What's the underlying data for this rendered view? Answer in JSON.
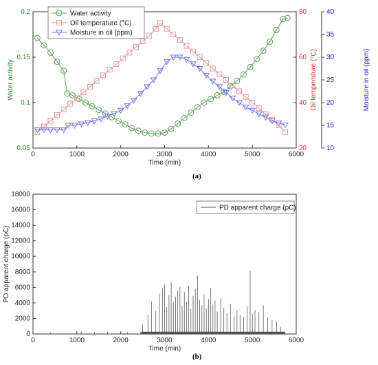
{
  "captions": {
    "a": "(a)",
    "b": "(b)"
  },
  "chart_data": [
    {
      "type": "line",
      "xlabel": "Time (min)",
      "x_ticks": [
        "0",
        "1000",
        "2000",
        "3000",
        "4000",
        "5000",
        "6000"
      ],
      "xlim": [
        0,
        6000
      ],
      "axes": {
        "left": {
          "label": "Water activity",
          "color": "#2e8b2e",
          "ylim": [
            0.05,
            0.2
          ],
          "ticks": [
            "0.05",
            "0.1",
            "0.15",
            "0.2"
          ]
        },
        "right1": {
          "label": "Oil temperature (°C)",
          "color": "#cc3333",
          "ylim": [
            20,
            80
          ],
          "ticks": [
            "20",
            "40",
            "60",
            "80"
          ]
        },
        "right2": {
          "label": "Moisture in oil (ppm)",
          "color": "#2222cc",
          "ylim": [
            10,
            40
          ],
          "ticks": [
            "10",
            "15",
            "20",
            "25",
            "30",
            "35",
            "40"
          ]
        }
      },
      "legend_position": "top-left",
      "series": [
        {
          "name": "Water activity",
          "axis": "left",
          "color": "#5aa55a",
          "marker": "circle",
          "points": [
            [
              100,
              0.171
            ],
            [
              250,
              0.163
            ],
            [
              400,
              0.155
            ],
            [
              550,
              0.145
            ],
            [
              700,
              0.135
            ],
            [
              780,
              0.11
            ],
            [
              900,
              0.108
            ],
            [
              1050,
              0.104
            ],
            [
              1200,
              0.1
            ],
            [
              1350,
              0.096
            ],
            [
              1500,
              0.092
            ],
            [
              1650,
              0.088
            ],
            [
              1800,
              0.084
            ],
            [
              1950,
              0.08
            ],
            [
              2100,
              0.076
            ],
            [
              2250,
              0.072
            ],
            [
              2400,
              0.069
            ],
            [
              2550,
              0.067
            ],
            [
              2700,
              0.066
            ],
            [
              2850,
              0.066
            ],
            [
              3000,
              0.067
            ],
            [
              3150,
              0.071
            ],
            [
              3300,
              0.077
            ],
            [
              3450,
              0.083
            ],
            [
              3600,
              0.089
            ],
            [
              3750,
              0.095
            ],
            [
              3900,
              0.1
            ],
            [
              4050,
              0.104
            ],
            [
              4200,
              0.108
            ],
            [
              4350,
              0.112
            ],
            [
              4500,
              0.118
            ],
            [
              4650,
              0.124
            ],
            [
              4800,
              0.131
            ],
            [
              4950,
              0.139
            ],
            [
              5100,
              0.148
            ],
            [
              5250,
              0.157
            ],
            [
              5400,
              0.167
            ],
            [
              5550,
              0.18
            ],
            [
              5700,
              0.192
            ],
            [
              5800,
              0.193
            ]
          ]
        },
        {
          "name": "Oil temperature (°C)",
          "axis": "right1",
          "color": "#e09a9a",
          "marker": "square",
          "points": [
            [
              100,
              27
            ],
            [
              250,
              29.5
            ],
            [
              400,
              32
            ],
            [
              550,
              34.5
            ],
            [
              700,
              37
            ],
            [
              850,
              39.5
            ],
            [
              1000,
              42
            ],
            [
              1150,
              44.5
            ],
            [
              1300,
              47
            ],
            [
              1450,
              49.5
            ],
            [
              1600,
              52
            ],
            [
              1750,
              54.5
            ],
            [
              1900,
              57
            ],
            [
              2050,
              59.5
            ],
            [
              2200,
              62
            ],
            [
              2350,
              64.5
            ],
            [
              2500,
              67
            ],
            [
              2650,
              69.5
            ],
            [
              2800,
              72.5
            ],
            [
              2900,
              75
            ],
            [
              3050,
              72.5
            ],
            [
              3200,
              70
            ],
            [
              3350,
              67.5
            ],
            [
              3500,
              65
            ],
            [
              3650,
              62.5
            ],
            [
              3800,
              60
            ],
            [
              3950,
              57.5
            ],
            [
              4100,
              55
            ],
            [
              4250,
              52.5
            ],
            [
              4400,
              50
            ],
            [
              4550,
              47.5
            ],
            [
              4700,
              45
            ],
            [
              4850,
              42.5
            ],
            [
              5000,
              40
            ],
            [
              5150,
              37.5
            ],
            [
              5300,
              35
            ],
            [
              5450,
              32.5
            ],
            [
              5600,
              30
            ],
            [
              5750,
              27
            ]
          ]
        },
        {
          "name": "Moisture in oil (ppm)",
          "axis": "right2",
          "color": "#7777ee",
          "marker": "triangle-down",
          "points": [
            [
              100,
              14
            ],
            [
              250,
              14
            ],
            [
              400,
              14
            ],
            [
              550,
              14
            ],
            [
              700,
              14
            ],
            [
              800,
              15
            ],
            [
              950,
              15
            ],
            [
              1100,
              15.3
            ],
            [
              1250,
              15.6
            ],
            [
              1400,
              16
            ],
            [
              1550,
              16.4
            ],
            [
              1700,
              17
            ],
            [
              1850,
              17.6
            ],
            [
              2000,
              18.3
            ],
            [
              2150,
              19.3
            ],
            [
              2300,
              20.5
            ],
            [
              2450,
              22
            ],
            [
              2600,
              23.5
            ],
            [
              2750,
              25
            ],
            [
              2900,
              27
            ],
            [
              3050,
              29
            ],
            [
              3200,
              30
            ],
            [
              3350,
              30
            ],
            [
              3500,
              29.5
            ],
            [
              3650,
              28.5
            ],
            [
              3800,
              27.5
            ],
            [
              3950,
              26
            ],
            [
              4100,
              24.7
            ],
            [
              4250,
              23.5
            ],
            [
              4400,
              22.2
            ],
            [
              4550,
              21
            ],
            [
              4700,
              20
            ],
            [
              4850,
              19
            ],
            [
              5000,
              18.3
            ],
            [
              5150,
              17.5
            ],
            [
              5300,
              16.8
            ],
            [
              5450,
              16
            ],
            [
              5600,
              15.5
            ],
            [
              5750,
              15.1
            ]
          ]
        }
      ]
    },
    {
      "type": "line",
      "xlabel": "Time (min)",
      "ylabel": "PD apparent charge (pC)",
      "xlim": [
        0,
        6000
      ],
      "ylim": [
        0,
        18000
      ],
      "x_ticks": [
        "0",
        "1000",
        "2000",
        "3000",
        "4000",
        "5000",
        "6000"
      ],
      "y_ticks": [
        "0",
        "2000",
        "4000",
        "6000",
        "8000",
        "10000",
        "12000",
        "14000",
        "16000",
        "18000"
      ],
      "legend_position": "top-right",
      "series": [
        {
          "name": "PD apparent charge (pC)",
          "color": "#555555",
          "peaks": [
            [
              400,
              200
            ],
            [
              1100,
              300
            ],
            [
              1400,
              250
            ],
            [
              1700,
              280
            ],
            [
              2150,
              250
            ],
            [
              2500,
              1200
            ],
            [
              2620,
              2500
            ],
            [
              2700,
              4200
            ],
            [
              2800,
              3000
            ],
            [
              2880,
              5200
            ],
            [
              2950,
              5900
            ],
            [
              3000,
              6400
            ],
            [
              3050,
              3500
            ],
            [
              3100,
              5000
            ],
            [
              3150,
              6700
            ],
            [
              3200,
              4100
            ],
            [
              3250,
              4800
            ],
            [
              3300,
              5600
            ],
            [
              3350,
              6100
            ],
            [
              3400,
              3600
            ],
            [
              3450,
              5400
            ],
            [
              3500,
              4100
            ],
            [
              3550,
              6200
            ],
            [
              3600,
              3200
            ],
            [
              3650,
              4900
            ],
            [
              3700,
              5800
            ],
            [
              3750,
              7500
            ],
            [
              3800,
              4400
            ],
            [
              3850,
              3700
            ],
            [
              3900,
              5100
            ],
            [
              3950,
              3300
            ],
            [
              4000,
              4500
            ],
            [
              4050,
              5900
            ],
            [
              4100,
              3800
            ],
            [
              4150,
              4300
            ],
            [
              4200,
              2900
            ],
            [
              4280,
              4600
            ],
            [
              4350,
              3400
            ],
            [
              4420,
              2700
            ],
            [
              4500,
              3900
            ],
            [
              4580,
              2300
            ],
            [
              4650,
              3100
            ],
            [
              4720,
              2500
            ],
            [
              4800,
              2200
            ],
            [
              4880,
              3600
            ],
            [
              4950,
              8100
            ],
            [
              5000,
              2600
            ],
            [
              5060,
              3100
            ],
            [
              5150,
              2800
            ],
            [
              5250,
              3700
            ],
            [
              5350,
              2200
            ],
            [
              5450,
              1800
            ],
            [
              5550,
              1600
            ],
            [
              5650,
              900
            ]
          ]
        }
      ]
    }
  ]
}
